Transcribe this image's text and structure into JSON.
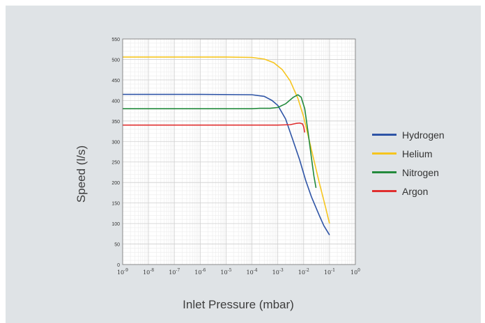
{
  "chart_data": {
    "type": "line",
    "xlabel": "Inlet Pressure (mbar)",
    "ylabel": "Speed (l/s)",
    "xscale": "log",
    "xlim": [
      1e-09,
      1
    ],
    "ylim": [
      0,
      550
    ],
    "grid": true,
    "legend_position": "right",
    "xticks": [
      {
        "value": 1e-09,
        "base": "10",
        "exp": "-9"
      },
      {
        "value": 1e-08,
        "base": "10",
        "exp": "-8"
      },
      {
        "value": 1e-07,
        "base": "10",
        "exp": "-7"
      },
      {
        "value": 1e-06,
        "base": "10",
        "exp": "-6"
      },
      {
        "value": 1e-05,
        "base": "10",
        "exp": "-5"
      },
      {
        "value": 0.0001,
        "base": "10",
        "exp": "-4"
      },
      {
        "value": 0.001,
        "base": "10",
        "exp": "-3"
      },
      {
        "value": 0.01,
        "base": "10",
        "exp": "-2"
      },
      {
        "value": 0.1,
        "base": "10",
        "exp": "-1"
      },
      {
        "value": 1,
        "base": "10",
        "exp": "0"
      }
    ],
    "yticks": [
      0,
      50,
      100,
      150,
      200,
      250,
      300,
      350,
      400,
      450,
      500,
      550
    ],
    "series": [
      {
        "name": "Hydrogen",
        "color": "#2e54a6",
        "points": [
          [
            1e-09,
            415
          ],
          [
            1e-06,
            415
          ],
          [
            0.0001,
            414
          ],
          [
            0.0003,
            410
          ],
          [
            0.0006,
            400
          ],
          [
            0.001,
            388
          ],
          [
            0.002,
            355
          ],
          [
            0.004,
            300
          ],
          [
            0.007,
            255
          ],
          [
            0.012,
            205
          ],
          [
            0.02,
            165
          ],
          [
            0.04,
            120
          ],
          [
            0.06,
            95
          ],
          [
            0.1,
            72
          ]
        ]
      },
      {
        "name": "Helium",
        "color": "#f6c51e",
        "points": [
          [
            1e-09,
            506
          ],
          [
            1e-05,
            506
          ],
          [
            0.0001,
            505
          ],
          [
            0.0003,
            501
          ],
          [
            0.0007,
            492
          ],
          [
            0.0015,
            475
          ],
          [
            0.003,
            448
          ],
          [
            0.006,
            405
          ],
          [
            0.01,
            360
          ],
          [
            0.02,
            280
          ],
          [
            0.04,
            200
          ],
          [
            0.07,
            140
          ],
          [
            0.1,
            100
          ]
        ]
      },
      {
        "name": "Nitrogen",
        "color": "#238a3c",
        "points": [
          [
            1e-09,
            380
          ],
          [
            0.0001,
            380
          ],
          [
            0.0002,
            381
          ],
          [
            0.0005,
            381
          ],
          [
            0.001,
            383
          ],
          [
            0.002,
            392
          ],
          [
            0.004,
            408
          ],
          [
            0.006,
            414
          ],
          [
            0.008,
            408
          ],
          [
            0.011,
            380
          ],
          [
            0.015,
            320
          ],
          [
            0.02,
            260
          ],
          [
            0.025,
            215
          ],
          [
            0.03,
            187
          ]
        ]
      },
      {
        "name": "Argon",
        "color": "#e02f2f",
        "points": [
          [
            1e-09,
            340
          ],
          [
            0.0001,
            340
          ],
          [
            0.001,
            340
          ],
          [
            0.003,
            341
          ],
          [
            0.005,
            344
          ],
          [
            0.007,
            345
          ],
          [
            0.009,
            343
          ],
          [
            0.01,
            336
          ],
          [
            0.011,
            322
          ]
        ]
      }
    ]
  }
}
